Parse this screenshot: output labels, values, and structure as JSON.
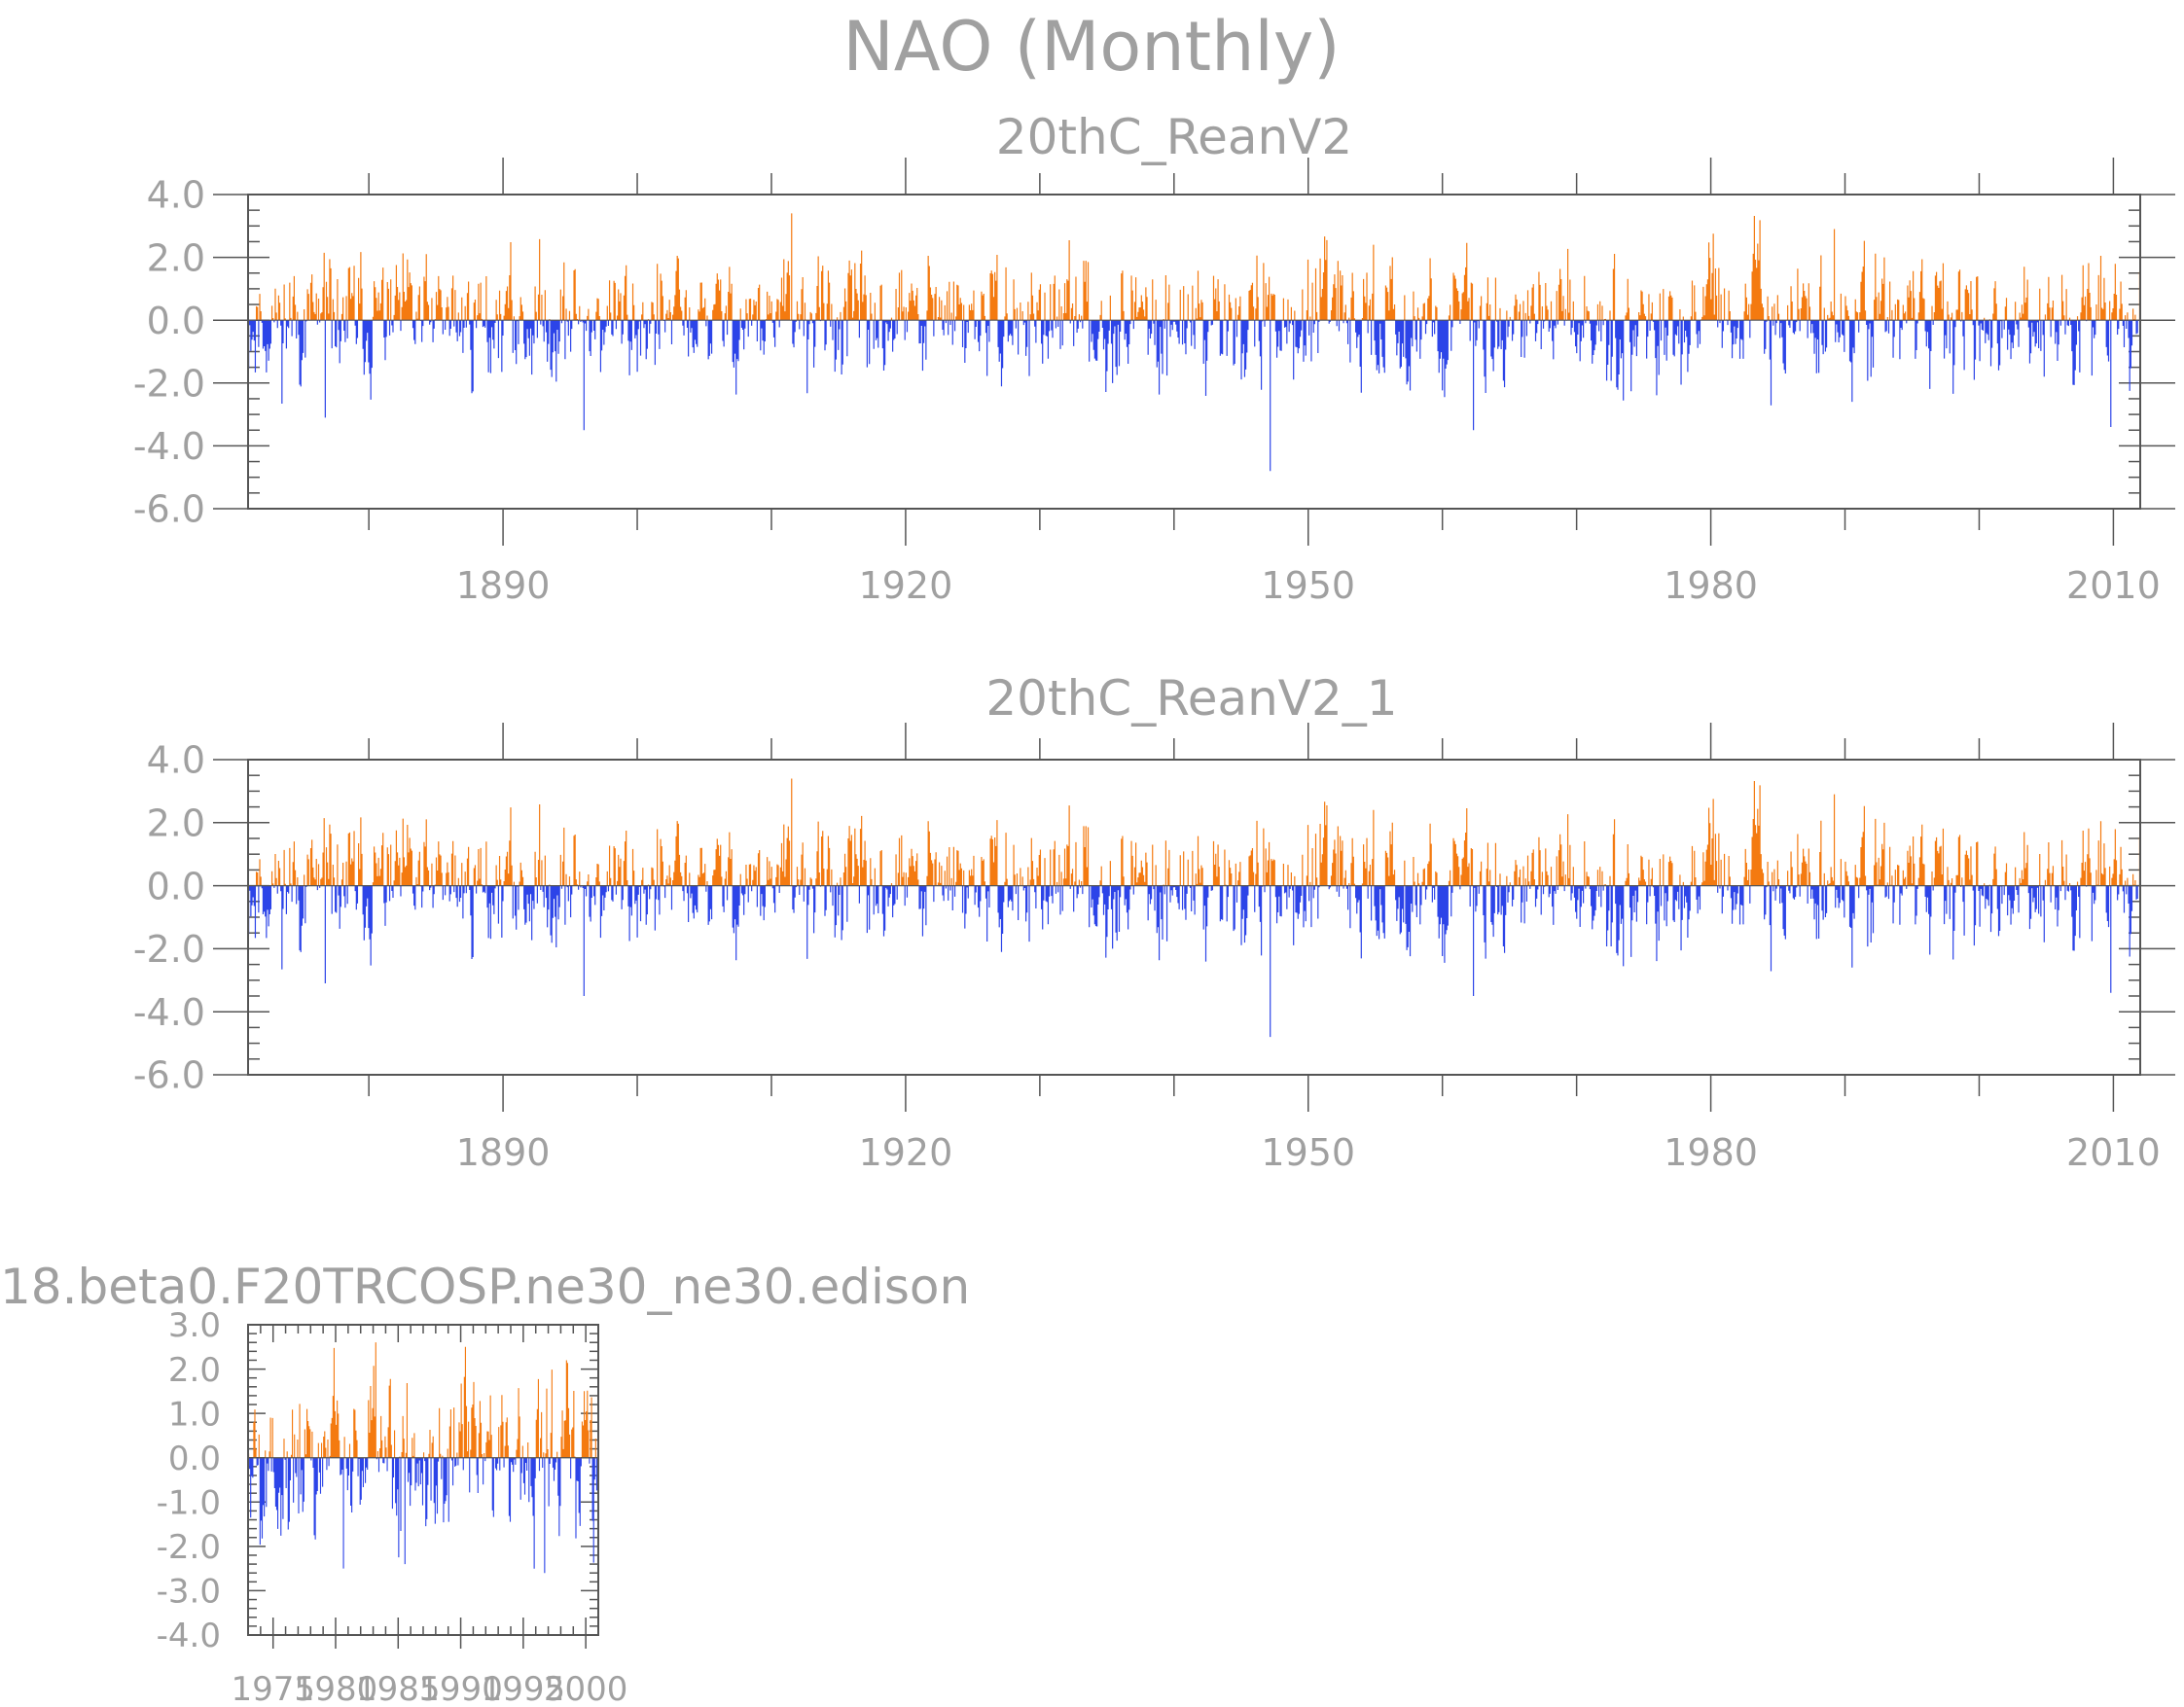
{
  "figure": {
    "title": "NAO (Monthly)",
    "colors": {
      "positive": "#f47a10",
      "negative": "#2c44e8",
      "axis": "#555555",
      "text": "#a0a0a0"
    }
  },
  "chart_data": [
    {
      "type": "bar",
      "title": "20thC_ReanV2",
      "x_start": 1871,
      "x_end": 2012,
      "ylim": [
        -6,
        4
      ],
      "yticks": [
        {
          "value": 4,
          "label": "4.0"
        },
        {
          "value": 2,
          "label": "2.0"
        },
        {
          "value": 0,
          "label": "0.0"
        },
        {
          "value": -2,
          "label": "-2.0"
        },
        {
          "value": -4,
          "label": "-4.0"
        },
        {
          "value": -6,
          "label": "-6.0"
        }
      ],
      "xticks": [
        {
          "value": 1890,
          "label": "1890"
        },
        {
          "value": 1920,
          "label": "1920"
        },
        {
          "value": 1950,
          "label": "1950"
        },
        {
          "value": 1980,
          "label": "1980"
        },
        {
          "value": 2010,
          "label": "2010"
        }
      ],
      "x_minor_step": 10,
      "y_minor_step": 0.5,
      "months_per_series": 1704,
      "seed": 11,
      "annotations": [
        {
          "year": 1947.1,
          "value": -4.8
        },
        {
          "year": 1911.5,
          "value": 3.4
        },
        {
          "year": 1876.7,
          "value": -3.1
        },
        {
          "year": 1896.0,
          "value": -3.5
        },
        {
          "year": 1962.3,
          "value": -3.5
        },
        {
          "year": 1989.2,
          "value": 2.9
        },
        {
          "year": 2009.8,
          "value": -3.4
        }
      ]
    },
    {
      "type": "bar",
      "title": "20thC_ReanV2_1",
      "x_start": 1871,
      "x_end": 2012,
      "ylim": [
        -6,
        4
      ],
      "yticks": [
        {
          "value": 4,
          "label": "4.0"
        },
        {
          "value": 2,
          "label": "2.0"
        },
        {
          "value": 0,
          "label": "0.0"
        },
        {
          "value": -2,
          "label": "-2.0"
        },
        {
          "value": -4,
          "label": "-4.0"
        },
        {
          "value": -6,
          "label": "-6.0"
        }
      ],
      "xticks": [
        {
          "value": 1890,
          "label": "1890"
        },
        {
          "value": 1920,
          "label": "1920"
        },
        {
          "value": 1950,
          "label": "1950"
        },
        {
          "value": 1980,
          "label": "1980"
        },
        {
          "value": 2010,
          "label": "2010"
        }
      ],
      "x_minor_step": 10,
      "y_minor_step": 0.5,
      "months_per_series": 1704,
      "seed": 11,
      "annotations": [
        {
          "year": 1947.1,
          "value": -4.8
        },
        {
          "year": 1911.5,
          "value": 3.4
        },
        {
          "year": 1876.7,
          "value": -3.1
        },
        {
          "year": 1896.0,
          "value": -3.5
        },
        {
          "year": 1962.3,
          "value": -3.5
        },
        {
          "year": 1989.2,
          "value": 2.9
        },
        {
          "year": 2009.8,
          "value": -3.4
        }
      ]
    },
    {
      "type": "bar",
      "title": "18.beta0.F20TRCOSP.ne30_ne30.edison",
      "x_start": 1973,
      "x_end": 2001,
      "ylim": [
        -4,
        3
      ],
      "yticks": [
        {
          "value": 3,
          "label": "3.0"
        },
        {
          "value": 2,
          "label": "2.0"
        },
        {
          "value": 1,
          "label": "1.0"
        },
        {
          "value": 0,
          "label": "0.0"
        },
        {
          "value": -1,
          "label": "-1.0"
        },
        {
          "value": -2,
          "label": "-2.0"
        },
        {
          "value": -3,
          "label": "-3.0"
        },
        {
          "value": -4,
          "label": "-4.0"
        }
      ],
      "xticks": [
        {
          "value": 1975,
          "label": "1975"
        },
        {
          "value": 1980,
          "label": "1980"
        },
        {
          "value": 1985,
          "label": "1985"
        },
        {
          "value": 1990,
          "label": "1990"
        },
        {
          "value": 1995,
          "label": "1995"
        },
        {
          "value": 2000,
          "label": "2000"
        }
      ],
      "x_minor_step": 1,
      "y_minor_step": 0.2,
      "months_per_series": 336,
      "seed": 5,
      "annotations": [
        {
          "year": 1980.6,
          "value": -2.5
        },
        {
          "year": 1985.5,
          "value": -2.4
        },
        {
          "year": 1996.7,
          "value": -2.6
        },
        {
          "year": 1998.4,
          "value": 2.2
        }
      ]
    }
  ]
}
